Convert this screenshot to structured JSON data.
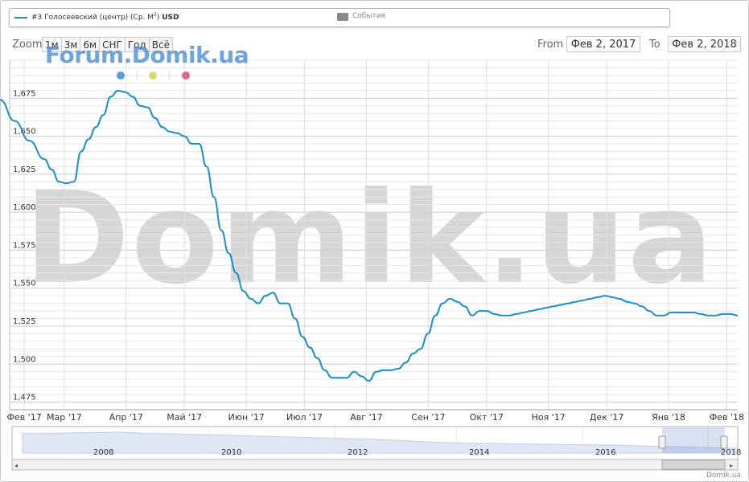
{
  "legend": {
    "series_label": "#3 Голосеевский (центр) (Ср. М",
    "series_label_sup": "2",
    "series_label_tail": ") ",
    "series_currency": "USD",
    "events_label": "События"
  },
  "toolbar": {
    "zoom_label": "Zoom",
    "zoom_buttons": [
      "1м",
      "3м",
      "6м",
      "СНГ",
      "Год",
      "Всё"
    ],
    "from_label": "From",
    "from_value": "Фев 2, 2017",
    "to_label": "To",
    "to_value": "Фев 2, 2018"
  },
  "watermarks": {
    "small": "Forum.Domik.ua",
    "big": "Domik.ua"
  },
  "dots": [
    "#5b9bd5",
    "#d9d96a",
    "#d46a8a"
  ],
  "colors": {
    "series": "#1a8fc9",
    "navigator_fill": "#c9d4ec",
    "grid": "#dcdcdc"
  },
  "footer": {
    "credit": "Domik.ua"
  },
  "chart_data": {
    "type": "line",
    "series": [
      {
        "name": "#3 Голосеевский (центр) (Ср. М2) USD",
        "x": [
          0,
          0.02,
          0.04,
          0.06,
          0.07,
          0.08,
          0.09,
          0.1,
          0.11,
          0.12,
          0.13,
          0.14,
          0.15,
          0.16,
          0.17,
          0.18,
          0.19,
          0.2,
          0.21,
          0.22,
          0.23,
          0.24,
          0.25,
          0.26,
          0.27,
          0.28,
          0.29,
          0.3,
          0.31,
          0.32,
          0.33,
          0.34,
          0.35,
          0.36,
          0.37,
          0.38,
          0.39,
          0.4,
          0.41,
          0.42,
          0.43,
          0.44,
          0.45,
          0.46,
          0.47,
          0.48,
          0.49,
          0.5,
          0.51,
          0.52,
          0.53,
          0.54,
          0.55,
          0.56,
          0.57,
          0.58,
          0.59,
          0.6,
          0.61,
          0.62,
          0.63,
          0.64,
          0.65,
          0.66,
          0.67,
          0.68,
          0.69,
          0.7,
          0.71,
          0.72,
          0.73,
          0.74,
          0.75,
          0.76,
          0.77,
          0.78,
          0.79,
          0.8,
          0.81,
          0.82,
          0.83,
          0.84,
          0.85,
          0.86,
          0.87,
          0.88,
          0.89,
          0.9,
          0.91,
          0.92,
          0.93,
          0.94,
          0.95,
          0.96,
          0.97,
          0.98,
          0.99,
          1.0
        ],
        "values": [
          1674,
          1660,
          1647,
          1635,
          1628,
          1620,
          1619,
          1620,
          1640,
          1648,
          1656,
          1664,
          1676,
          1680,
          1679,
          1676,
          1670,
          1669,
          1662,
          1656,
          1653,
          1652,
          1650,
          1645,
          1645,
          1630,
          1610,
          1588,
          1573,
          1560,
          1548,
          1543,
          1540,
          1545,
          1547,
          1540,
          1540,
          1530,
          1518,
          1511,
          1504,
          1496,
          1491,
          1491,
          1491,
          1495,
          1492,
          1489,
          1495,
          1496,
          1496,
          1497,
          1501,
          1507,
          1510,
          1520,
          1532,
          1540,
          1543,
          1541,
          1538,
          1532,
          1535,
          1535,
          1533,
          1532,
          1532,
          1533,
          1534,
          1535,
          1536,
          1537,
          1538,
          1539,
          1540,
          1541,
          1542,
          1543,
          1544,
          1545,
          1544,
          1543,
          1541,
          1540,
          1538,
          1535,
          1532,
          1532,
          1534,
          1534,
          1534,
          1534,
          1533,
          1532,
          1532,
          1533,
          1533,
          1532
        ]
      }
    ],
    "x_tick_labels": [
      "Фев '17",
      "Мар '17",
      "Апр '17",
      "Май '17",
      "Июн '17",
      "Июл '17",
      "Авг '17",
      "Сен '17",
      "Окт '17",
      "Ноя '17",
      "Дек '17",
      "Янв '18",
      "Фев '18"
    ],
    "y_ticks": [
      1475,
      1500,
      1525,
      1550,
      1575,
      1600,
      1625,
      1650,
      1675
    ],
    "y_tick_labels": [
      "1,475",
      "1,500",
      "1,525",
      "1,550",
      "1,575",
      "1,600",
      "1,625",
      "1,650",
      "1,675"
    ],
    "ylim": [
      1470,
      1700
    ],
    "grid": true,
    "navigator": {
      "year_labels": [
        "2008",
        "2010",
        "2012",
        "2014",
        "2016",
        "2018"
      ],
      "values": [
        1990,
        1985,
        2010,
        2020,
        2030,
        1990,
        1980,
        1960,
        1950,
        1920,
        1900,
        1880,
        1860,
        1840,
        1820,
        1790,
        1750,
        1720,
        1700,
        1690,
        1680,
        1670,
        1660,
        1650,
        1640,
        1620,
        1600,
        1580,
        1560,
        1540
      ]
    }
  }
}
